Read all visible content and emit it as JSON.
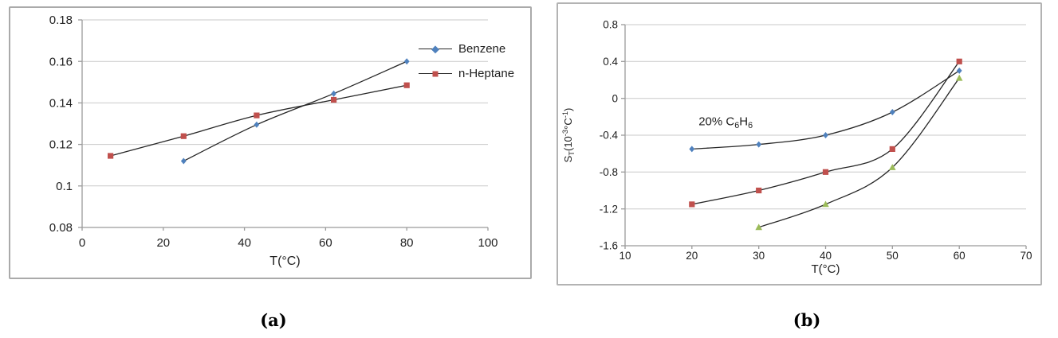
{
  "figure": {
    "caption_a": "(a)",
    "caption_b": "(b)"
  },
  "palette": {
    "grid": "#c9c9c9",
    "axis": "#9b9b9b",
    "series_line": "#262626",
    "text": "#1f1f1f",
    "blue": "#4F81BD",
    "red": "#C0504D",
    "green": "#9BBB59"
  },
  "chart_data": [
    {
      "panel": "a",
      "type": "line",
      "title": "",
      "xlabel": "T(°C)",
      "ylabel": "",
      "xlim": [
        0,
        100
      ],
      "ylim": [
        0.08,
        0.18
      ],
      "xtick_values": [
        0,
        20,
        40,
        60,
        80,
        100
      ],
      "xtick_labels": [
        "0",
        "20",
        "40",
        "60",
        "80",
        "100"
      ],
      "ytick_values": [
        0.08,
        0.1,
        0.12,
        0.14,
        0.16,
        0.18
      ],
      "ytick_labels": [
        "0.08",
        "0.1",
        "0.12",
        "0.14",
        "0.16",
        "0.18"
      ],
      "grid": true,
      "legend": {
        "visible": true,
        "position": "inside-right"
      },
      "series": [
        {
          "name": "Benzene",
          "marker": "diamond",
          "marker_color": "#4F81BD",
          "line_color": "#262626",
          "smooth": true,
          "x": [
            25,
            43,
            62,
            80
          ],
          "y": [
            0.112,
            0.1295,
            0.1445,
            0.16
          ]
        },
        {
          "name": "n-Heptane",
          "marker": "square",
          "marker_color": "#C0504D",
          "line_color": "#262626",
          "smooth": true,
          "x": [
            7,
            25,
            43,
            62,
            80
          ],
          "y": [
            0.1145,
            0.124,
            0.134,
            0.1415,
            0.1485
          ]
        }
      ]
    },
    {
      "panel": "b",
      "type": "line",
      "title": "",
      "xlabel": "T(°C)",
      "ylabel": "S_T(10^-3°C^-1)",
      "ylabel_rich": [
        {
          "t": "S"
        },
        {
          "t": "T",
          "s": "sub"
        },
        {
          "t": "(10"
        },
        {
          "t": "-3",
          "s": "sup"
        },
        {
          "t": "°C"
        },
        {
          "t": "-1",
          "s": "sup"
        },
        {
          "t": ")"
        }
      ],
      "annotation": {
        "text": "20% C6H6",
        "rich": [
          {
            "t": "20% C"
          },
          {
            "t": "6",
            "s": "sub"
          },
          {
            "t": "H"
          },
          {
            "t": "6",
            "s": "sub"
          }
        ],
        "x": 21,
        "y": -0.29
      },
      "xlim": [
        10,
        70
      ],
      "ylim": [
        -1.6,
        0.8
      ],
      "xtick_values": [
        10,
        20,
        30,
        40,
        50,
        60,
        70
      ],
      "xtick_labels": [
        "10",
        "20",
        "30",
        "40",
        "50",
        "60",
        "70"
      ],
      "ytick_values": [
        -1.6,
        -1.2,
        -0.8,
        -0.4,
        0,
        0.4,
        0.8
      ],
      "ytick_labels": [
        "-1.6",
        "-1.2",
        "-0.8",
        "-0.4",
        "0",
        "0.4",
        "0.8"
      ],
      "grid": true,
      "legend": {
        "visible": false
      },
      "series": [
        {
          "name": "",
          "marker": "diamond",
          "marker_color": "#4F81BD",
          "line_color": "#262626",
          "smooth": true,
          "x": [
            20,
            30,
            40,
            50,
            60
          ],
          "y": [
            -0.55,
            -0.5,
            -0.4,
            -0.15,
            0.3
          ]
        },
        {
          "name": "",
          "marker": "square",
          "marker_color": "#C0504D",
          "line_color": "#262626",
          "smooth": true,
          "x": [
            20,
            30,
            40,
            50,
            60
          ],
          "y": [
            -1.15,
            -1.0,
            -0.8,
            -0.55,
            0.4
          ]
        },
        {
          "name": "",
          "marker": "triangle",
          "marker_color": "#9BBB59",
          "line_color": "#262626",
          "smooth": true,
          "x": [
            30,
            40,
            50,
            60
          ],
          "y": [
            -1.4,
            -1.15,
            -0.75,
            0.22
          ]
        }
      ]
    }
  ]
}
